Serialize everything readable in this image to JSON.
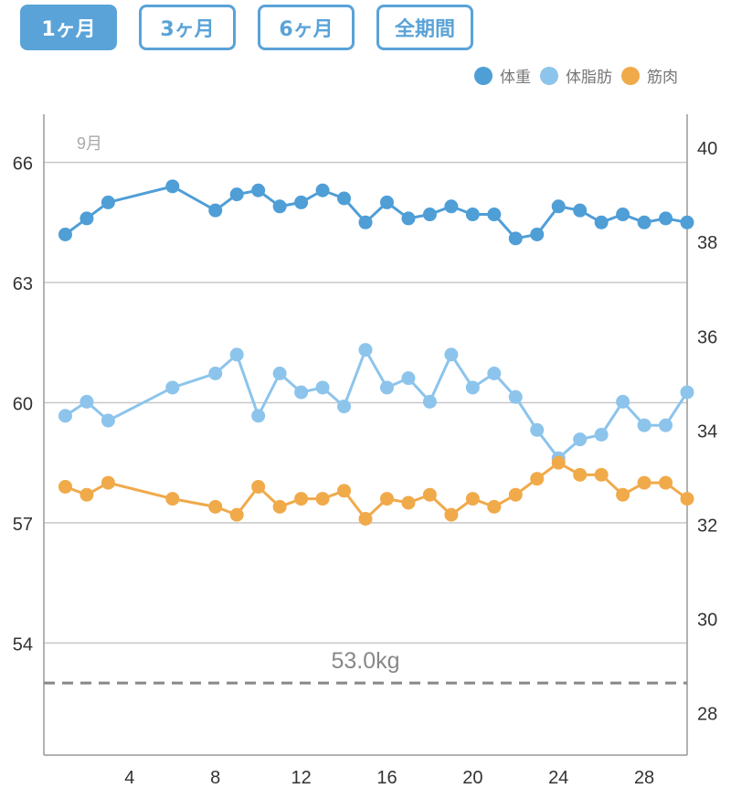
{
  "tabs": [
    {
      "label": "1ヶ月",
      "active": true
    },
    {
      "label": "3ヶ月",
      "active": false
    },
    {
      "label": "6ヶ月",
      "active": false
    },
    {
      "label": "全期間",
      "active": false
    }
  ],
  "colors": {
    "accent": "#5aa3d8",
    "weight": "#4f9ed6",
    "body_fat": "#8cc4ec",
    "muscle": "#f0aa4a",
    "target": "#888888"
  },
  "chart_data": {
    "type": "line",
    "month_label": "9月",
    "x": [
      1,
      2,
      3,
      6,
      8,
      9,
      10,
      11,
      12,
      13,
      14,
      15,
      16,
      17,
      18,
      19,
      20,
      21,
      22,
      23,
      24,
      25,
      26,
      27,
      28,
      29,
      30
    ],
    "xlim": [
      0,
      30
    ],
    "x_ticks": [
      4,
      8,
      12,
      16,
      20,
      24,
      28
    ],
    "y_left": {
      "ticks": [
        66,
        63,
        60,
        57,
        54
      ],
      "lim": [
        51.2,
        67.2
      ]
    },
    "y_right": {
      "ticks": [
        40,
        38,
        36,
        34,
        32,
        30,
        28
      ],
      "lim": [
        27.1,
        40.7
      ]
    },
    "grid": true,
    "legend_position": "top-right",
    "series": [
      {
        "name": "体重",
        "axis": "left",
        "color": "#4f9ed6",
        "values": [
          64.2,
          64.6,
          65.0,
          65.4,
          64.8,
          65.2,
          65.3,
          64.9,
          65.0,
          65.3,
          65.1,
          64.5,
          65.0,
          64.6,
          64.7,
          64.9,
          64.7,
          64.7,
          64.1,
          64.2,
          64.9,
          64.8,
          64.5,
          64.7,
          64.5,
          64.6,
          64.5
        ]
      },
      {
        "name": "体脂肪",
        "axis": "right",
        "color": "#8cc4ec",
        "values": [
          34.3,
          34.6,
          34.2,
          34.9,
          35.2,
          35.6,
          34.3,
          35.2,
          34.8,
          34.9,
          34.5,
          35.7,
          34.9,
          35.1,
          34.6,
          35.6,
          34.9,
          35.2,
          34.7,
          34.0,
          33.4,
          33.8,
          33.9,
          34.6,
          34.1,
          34.1,
          34.8
        ]
      },
      {
        "name": "筋肉",
        "axis": "left",
        "color": "#f0aa4a",
        "values": [
          57.9,
          57.7,
          58.0,
          57.6,
          57.4,
          57.2,
          57.9,
          57.4,
          57.6,
          57.6,
          57.8,
          57.1,
          57.6,
          57.5,
          57.7,
          57.2,
          57.6,
          57.4,
          57.7,
          58.1,
          58.5,
          58.2,
          58.2,
          57.7,
          58.0,
          58.0,
          57.6
        ]
      }
    ],
    "target": {
      "value": 53.0,
      "label": "53.0kg"
    }
  }
}
